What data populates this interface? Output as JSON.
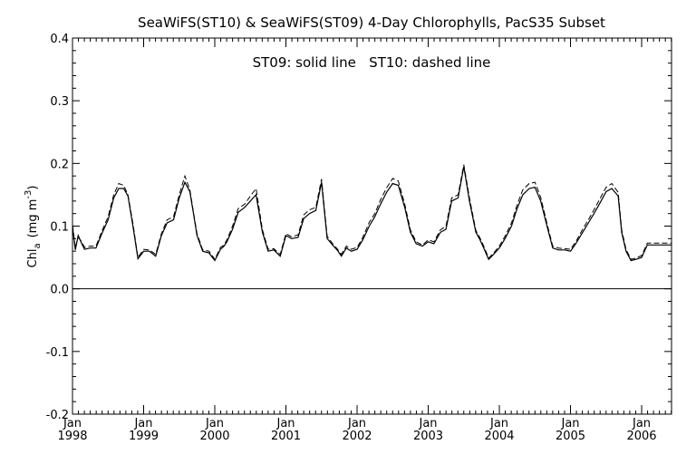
{
  "chart_data": {
    "type": "line",
    "title": "SeaWiFS(ST10) & SeaWiFS(ST09) 4-Day Chlorophylls, PacS35 Subset",
    "annotation": "ST09: solid line   ST10: dashed line",
    "ylabel": {
      "main": "Chl",
      "sub": "a",
      "unit_open": "(mg m",
      "sup": "-3",
      "unit_close": ")"
    },
    "xlabel": "",
    "ylim": [
      -0.2,
      0.4
    ],
    "xlim": [
      1998.0,
      2006.42
    ],
    "yticks": [
      "-0.2",
      "-0.1",
      "0.0",
      "0.1",
      "0.2",
      "0.3",
      "0.4"
    ],
    "xticks": [
      {
        "month": "Jan",
        "year": "1998"
      },
      {
        "month": "Jan",
        "year": "1999"
      },
      {
        "month": "Jan",
        "year": "2000"
      },
      {
        "month": "Jan",
        "year": "2001"
      },
      {
        "month": "Jan",
        "year": "2002"
      },
      {
        "month": "Jan",
        "year": "2003"
      },
      {
        "month": "Jan",
        "year": "2004"
      },
      {
        "month": "Jan",
        "year": "2005"
      },
      {
        "month": "Jan",
        "year": "2006"
      }
    ],
    "zero_line": 0.0,
    "series": [
      {
        "name": "ST09",
        "style": "solid",
        "x": [
          1998.0,
          1998.04,
          1998.08,
          1998.13,
          1998.17,
          1998.25,
          1998.33,
          1998.42,
          1998.5,
          1998.58,
          1998.65,
          1998.72,
          1998.78,
          1998.85,
          1998.92,
          1999.0,
          1999.08,
          1999.17,
          1999.25,
          1999.33,
          1999.42,
          1999.5,
          1999.58,
          1999.65,
          1999.7,
          1999.75,
          1999.83,
          1999.92,
          2000.0,
          2000.08,
          2000.13,
          2000.17,
          2000.25,
          2000.33,
          2000.42,
          2000.5,
          2000.58,
          2000.67,
          2000.75,
          2000.83,
          2000.92,
          2001.0,
          2001.08,
          2001.17,
          2001.25,
          2001.33,
          2001.42,
          2001.5,
          2001.58,
          2001.67,
          2001.72,
          2001.78,
          2001.85,
          2001.92,
          2002.0,
          2002.08,
          2002.17,
          2002.25,
          2002.33,
          2002.42,
          2002.5,
          2002.58,
          2002.67,
          2002.75,
          2002.83,
          2002.92,
          2003.0,
          2003.08,
          2003.17,
          2003.25,
          2003.33,
          2003.42,
          2003.5,
          2003.58,
          2003.67,
          2003.72,
          2003.78,
          2003.85,
          2003.92,
          2004.0,
          2004.08,
          2004.17,
          2004.25,
          2004.33,
          2004.42,
          2004.5,
          2004.58,
          2004.67,
          2004.75,
          2004.83,
          2004.92,
          2005.0,
          2005.08,
          2005.17,
          2005.25,
          2005.33,
          2005.42,
          2005.5,
          2005.58,
          2005.67,
          2005.72,
          2005.78,
          2005.85,
          2005.92,
          2006.0,
          2006.08,
          2006.17,
          2006.25,
          2006.33,
          2006.42
        ],
        "y": [
          0.1,
          0.062,
          0.085,
          0.072,
          0.063,
          0.065,
          0.065,
          0.09,
          0.11,
          0.145,
          0.16,
          0.16,
          0.148,
          0.1,
          0.048,
          0.06,
          0.06,
          0.052,
          0.085,
          0.105,
          0.11,
          0.145,
          0.17,
          0.155,
          0.12,
          0.085,
          0.06,
          0.057,
          0.045,
          0.063,
          0.068,
          0.075,
          0.095,
          0.122,
          0.13,
          0.14,
          0.15,
          0.09,
          0.06,
          0.062,
          0.052,
          0.085,
          0.08,
          0.082,
          0.112,
          0.12,
          0.125,
          0.17,
          0.08,
          0.068,
          0.062,
          0.052,
          0.065,
          0.06,
          0.063,
          0.078,
          0.1,
          0.115,
          0.135,
          0.155,
          0.168,
          0.165,
          0.13,
          0.09,
          0.072,
          0.068,
          0.075,
          0.072,
          0.09,
          0.095,
          0.14,
          0.145,
          0.195,
          0.14,
          0.09,
          0.08,
          0.065,
          0.047,
          0.055,
          0.065,
          0.08,
          0.1,
          0.128,
          0.15,
          0.16,
          0.162,
          0.14,
          0.1,
          0.065,
          0.062,
          0.062,
          0.06,
          0.073,
          0.09,
          0.105,
          0.12,
          0.138,
          0.155,
          0.16,
          0.148,
          0.09,
          0.06,
          0.045,
          0.047,
          0.05,
          0.07,
          0.07,
          0.07,
          0.07,
          0.07
        ]
      },
      {
        "name": "ST10",
        "style": "dashed",
        "x": [
          1998.0,
          1998.04,
          1998.08,
          1998.13,
          1998.17,
          1998.25,
          1998.33,
          1998.42,
          1998.5,
          1998.58,
          1998.65,
          1998.72,
          1998.78,
          1998.85,
          1998.92,
          1999.0,
          1999.08,
          1999.17,
          1999.25,
          1999.33,
          1999.42,
          1999.5,
          1999.58,
          1999.65,
          1999.7,
          1999.75,
          1999.83,
          1999.92,
          2000.0,
          2000.08,
          2000.13,
          2000.17,
          2000.25,
          2000.33,
          2000.42,
          2000.5,
          2000.58,
          2000.67,
          2000.75,
          2000.83,
          2000.92,
          2001.0,
          2001.08,
          2001.17,
          2001.25,
          2001.33,
          2001.42,
          2001.5,
          2001.58,
          2001.67,
          2001.72,
          2001.78,
          2001.85,
          2001.92,
          2002.0,
          2002.08,
          2002.17,
          2002.25,
          2002.33,
          2002.42,
          2002.5,
          2002.58,
          2002.67,
          2002.75,
          2002.83,
          2002.92,
          2003.0,
          2003.08,
          2003.17,
          2003.25,
          2003.33,
          2003.42,
          2003.5,
          2003.58,
          2003.67,
          2003.72,
          2003.78,
          2003.85,
          2003.92,
          2004.0,
          2004.08,
          2004.17,
          2004.25,
          2004.33,
          2004.42,
          2004.5,
          2004.58,
          2004.67,
          2004.75,
          2004.83,
          2004.92,
          2005.0,
          2005.08,
          2005.17,
          2005.25,
          2005.33,
          2005.42,
          2005.5,
          2005.58,
          2005.67,
          2005.72,
          2005.78,
          2005.85,
          2005.92,
          2006.0,
          2006.08,
          2006.17,
          2006.25,
          2006.33,
          2006.42
        ],
        "y": [
          0.102,
          0.066,
          0.082,
          0.075,
          0.066,
          0.068,
          0.068,
          0.094,
          0.115,
          0.15,
          0.168,
          0.165,
          0.15,
          0.104,
          0.05,
          0.063,
          0.062,
          0.055,
          0.088,
          0.11,
          0.115,
          0.15,
          0.18,
          0.158,
          0.122,
          0.088,
          0.062,
          0.06,
          0.047,
          0.066,
          0.07,
          0.078,
          0.1,
          0.128,
          0.135,
          0.148,
          0.16,
          0.094,
          0.063,
          0.064,
          0.055,
          0.088,
          0.083,
          0.086,
          0.118,
          0.126,
          0.13,
          0.175,
          0.084,
          0.07,
          0.064,
          0.055,
          0.068,
          0.063,
          0.066,
          0.082,
          0.106,
          0.12,
          0.142,
          0.162,
          0.176,
          0.172,
          0.135,
          0.094,
          0.075,
          0.07,
          0.078,
          0.075,
          0.094,
          0.1,
          0.145,
          0.15,
          0.198,
          0.145,
          0.093,
          0.083,
          0.068,
          0.049,
          0.057,
          0.068,
          0.084,
          0.105,
          0.134,
          0.158,
          0.168,
          0.17,
          0.146,
          0.104,
          0.068,
          0.065,
          0.064,
          0.063,
          0.076,
          0.095,
          0.11,
          0.126,
          0.145,
          0.162,
          0.168,
          0.154,
          0.094,
          0.063,
          0.047,
          0.049,
          0.053,
          0.073,
          0.073,
          0.073,
          0.073,
          0.073
        ]
      }
    ]
  }
}
